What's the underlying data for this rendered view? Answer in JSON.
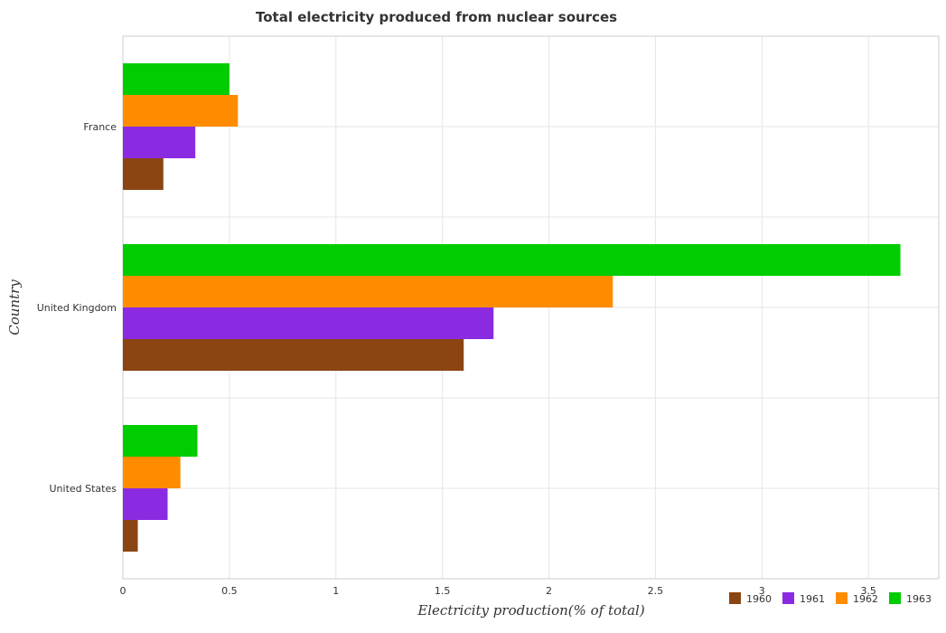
{
  "chart_data": {
    "type": "bar",
    "orientation": "horizontal",
    "title": "Total electricity produced from nuclear sources",
    "xlabel": "Electricity production(% of total)",
    "ylabel": "Country",
    "categories": [
      "France",
      "United Kingdom",
      "United States"
    ],
    "series": [
      {
        "name": "1960",
        "color": "#8b4513",
        "values": [
          0.19,
          1.6,
          0.07
        ]
      },
      {
        "name": "1961",
        "color": "#8a2be2",
        "values": [
          0.34,
          1.74,
          0.21
        ]
      },
      {
        "name": "1962",
        "color": "#ff8c00",
        "values": [
          0.54,
          2.3,
          0.27
        ]
      },
      {
        "name": "1963",
        "color": "#00cd00",
        "values": [
          0.5,
          3.65,
          0.35
        ]
      }
    ],
    "xlim": [
      0,
      3.83
    ],
    "xticks": [
      0,
      0.5,
      1,
      1.5,
      2,
      2.5,
      3,
      3.5
    ],
    "xtick_labels": [
      "0",
      "0.5",
      "1",
      "1.5",
      "2",
      "2.5",
      "3",
      "3.5"
    ],
    "grid": true,
    "legend_position": "bottom-right"
  }
}
